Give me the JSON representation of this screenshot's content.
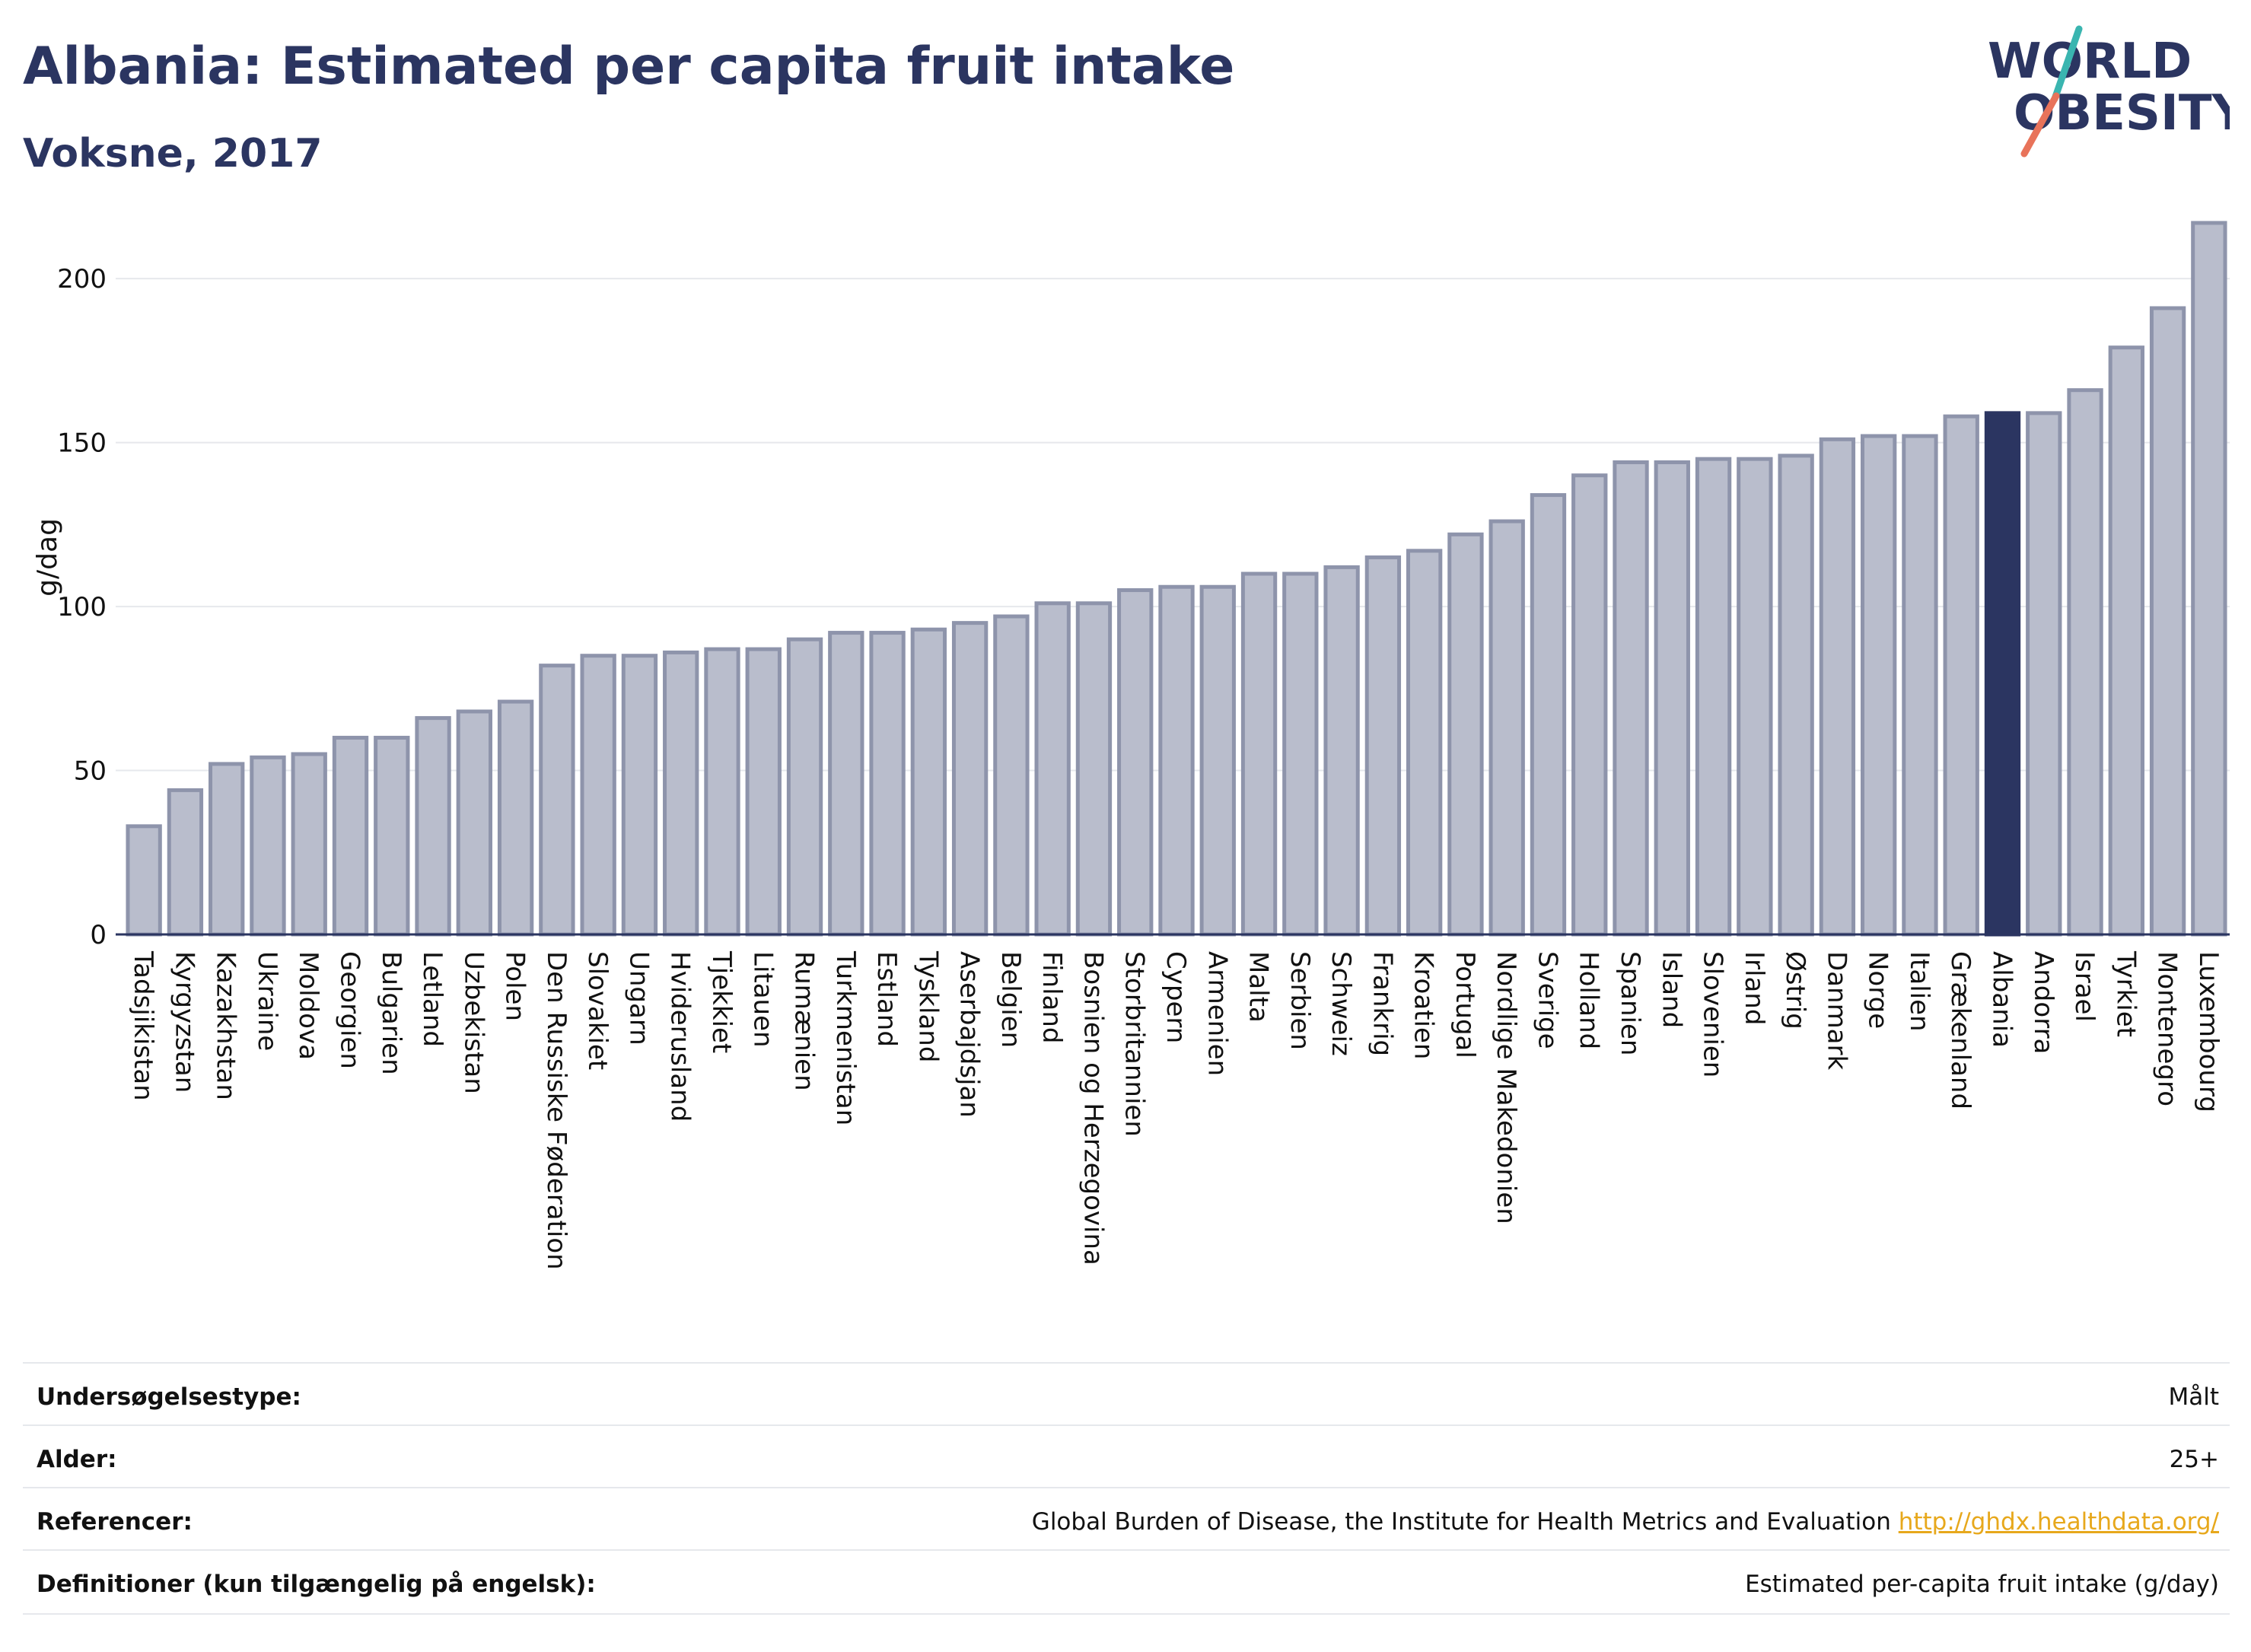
{
  "header": {
    "title": "Albania: Estimated per capita fruit intake",
    "subtitle": "Voksne, 2017"
  },
  "logo": {
    "line1": "WORLD",
    "line2": "OBESITY",
    "accent_teal": "#3ab5b0",
    "accent_coral": "#e8735a"
  },
  "colors": {
    "bar": "#b9bdcc",
    "bar_stroke": "#8e94ab",
    "highlight": "#2b3561",
    "grid": "#e6e8ec",
    "axis_text": "#111111"
  },
  "chart_data": {
    "type": "bar",
    "ylabel": "g/dag",
    "ylim": [
      0,
      220
    ],
    "yticks": [
      0,
      50,
      100,
      150,
      200
    ],
    "grid": true,
    "highlight": "Albania",
    "categories": [
      "Tadsjikistan",
      "Kyrgyzstan",
      "Kazakhstan",
      "Ukraine",
      "Moldova",
      "Georgien",
      "Bulgarien",
      "Letland",
      "Uzbekistan",
      "Polen",
      "Den Russiske Føderation",
      "Slovakiet",
      "Ungarn",
      "Hviderusland",
      "Tjekkiet",
      "Litauen",
      "Rumænien",
      "Turkmenistan",
      "Estland",
      "Tyskland",
      "Aserbajdsjan",
      "Belgien",
      "Finland",
      "Bosnien og Herzegovina",
      "Storbritannien",
      "Cypern",
      "Armenien",
      "Malta",
      "Serbien",
      "Schweiz",
      "Frankrig",
      "Kroatien",
      "Portugal",
      "Nordlige Makedonien",
      "Sverige",
      "Holland",
      "Spanien",
      "Island",
      "Slovenien",
      "Irland",
      "Østrig",
      "Danmark",
      "Norge",
      "Italien",
      "Grækenland",
      "Albania",
      "Andorra",
      "Israel",
      "Tyrkiet",
      "Montenegro",
      "Luxembourg"
    ],
    "values": [
      33,
      44,
      52,
      54,
      55,
      60,
      60,
      66,
      68,
      71,
      82,
      85,
      85,
      86,
      87,
      87,
      90,
      92,
      92,
      93,
      95,
      97,
      101,
      101,
      105,
      106,
      106,
      110,
      110,
      112,
      115,
      117,
      122,
      126,
      134,
      140,
      144,
      144,
      145,
      145,
      146,
      151,
      152,
      152,
      158,
      159,
      159,
      166,
      179,
      191,
      217
    ]
  },
  "info": {
    "rows": [
      {
        "key": "Undersøgelsestype:",
        "value": "Målt"
      },
      {
        "key": "Alder:",
        "value": "25+"
      },
      {
        "key": "Referencer:",
        "value": "Global Burden of Disease, the Institute for Health Metrics and Evaluation",
        "link": "http://ghdx.healthdata.org/"
      },
      {
        "key": "Definitioner (kun tilgængelig på engelsk):",
        "value": "Estimated per-capita fruit intake (g/day)"
      }
    ]
  }
}
